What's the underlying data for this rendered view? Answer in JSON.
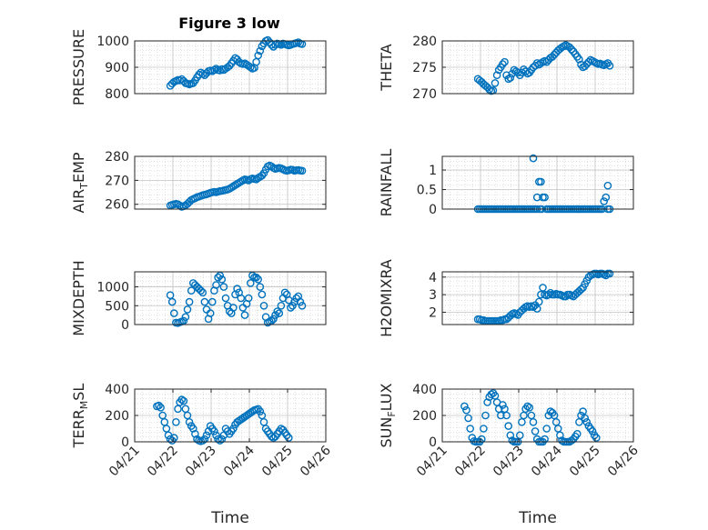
{
  "figure_title": "Figure 3 low",
  "marker_color": "#0072BD",
  "chart_data": [
    {
      "type": "scatter",
      "title": "Figure 3 low",
      "ylabel": "PRESSURE",
      "ylim": [
        800,
        1000
      ],
      "yticks": [
        800,
        900,
        1000
      ],
      "yticklabels": [
        "800",
        "900",
        "1000"
      ],
      "xlim": [
        0,
        5
      ],
      "xticklabels": [],
      "xlabel": "",
      "grid": true,
      "x": [
        0.93,
        0.98,
        1.03,
        1.08,
        1.13,
        1.18,
        1.23,
        1.28,
        1.33,
        1.38,
        1.43,
        1.48,
        1.53,
        1.58,
        1.63,
        1.68,
        1.73,
        1.78,
        1.83,
        1.88,
        1.93,
        1.98,
        2.03,
        2.08,
        2.13,
        2.18,
        2.23,
        2.28,
        2.33,
        2.38,
        2.43,
        2.48,
        2.53,
        2.58,
        2.63,
        2.68,
        2.73,
        2.78,
        2.83,
        2.88,
        2.93,
        2.98,
        3.03,
        3.08,
        3.13,
        3.18,
        3.23,
        3.28,
        3.33,
        3.38,
        3.43,
        3.48,
        3.53,
        3.58,
        3.63,
        3.68,
        3.73,
        3.78,
        3.83,
        3.88,
        3.93,
        3.98,
        4.03,
        4.08,
        4.13,
        4.18,
        4.23,
        4.28,
        4.33,
        4.38
      ],
      "y": [
        830,
        838,
        845,
        848,
        852,
        850,
        855,
        848,
        840,
        838,
        835,
        838,
        840,
        850,
        862,
        872,
        880,
        875,
        870,
        878,
        885,
        888,
        885,
        890,
        895,
        890,
        888,
        893,
        890,
        895,
        900,
        905,
        915,
        925,
        935,
        930,
        920,
        915,
        912,
        915,
        910,
        905,
        900,
        895,
        898,
        920,
        945,
        962,
        980,
        990,
        1000,
        1003,
        995,
        985,
        978,
        985,
        990,
        988,
        985,
        990,
        988,
        985,
        983,
        985,
        988,
        990,
        992,
        995,
        990,
        988
      ]
    },
    {
      "type": "scatter",
      "title": "",
      "ylabel": "THETA",
      "ylim": [
        270,
        280
      ],
      "yticks": [
        270,
        275,
        280
      ],
      "yticklabels": [
        "270",
        "275",
        "280"
      ],
      "xlim": [
        0,
        5
      ],
      "xticklabels": [],
      "xlabel": "",
      "grid": true,
      "x": [
        0.93,
        0.98,
        1.03,
        1.08,
        1.13,
        1.18,
        1.23,
        1.28,
        1.33,
        1.38,
        1.43,
        1.48,
        1.53,
        1.58,
        1.63,
        1.68,
        1.73,
        1.78,
        1.83,
        1.88,
        1.93,
        1.98,
        2.03,
        2.08,
        2.13,
        2.18,
        2.23,
        2.28,
        2.33,
        2.38,
        2.43,
        2.48,
        2.53,
        2.58,
        2.63,
        2.68,
        2.73,
        2.78,
        2.83,
        2.88,
        2.93,
        2.98,
        3.03,
        3.08,
        3.13,
        3.18,
        3.23,
        3.28,
        3.33,
        3.38,
        3.43,
        3.48,
        3.53,
        3.58,
        3.63,
        3.68,
        3.73,
        3.78,
        3.83,
        3.88,
        3.93,
        3.98,
        4.03,
        4.08,
        4.13,
        4.18,
        4.23,
        4.28,
        4.33,
        4.38
      ],
      "y": [
        272.8,
        272.5,
        272.2,
        271.8,
        271.5,
        271.2,
        270.8,
        270.5,
        270.6,
        272.0,
        273.5,
        274.5,
        275.0,
        275.6,
        276.0,
        273.5,
        272.8,
        273.0,
        273.8,
        274.5,
        274.2,
        274.0,
        273.5,
        274.0,
        274.6,
        274.2,
        273.8,
        274.0,
        274.5,
        275.0,
        275.3,
        275.8,
        275.5,
        275.8,
        276.0,
        276.2,
        276.0,
        276.4,
        276.8,
        277.0,
        277.4,
        277.8,
        278.2,
        278.5,
        278.8,
        279.0,
        279.2,
        279.0,
        278.8,
        278.4,
        278.0,
        277.5,
        277.0,
        276.5,
        275.5,
        275.0,
        275.2,
        275.6,
        276.0,
        276.4,
        276.2,
        276.0,
        275.8,
        275.6,
        275.7,
        275.5,
        275.4,
        275.6,
        275.8,
        275.3
      ]
    },
    {
      "type": "scatter",
      "title": "",
      "ylabel": "AIR_TEMP",
      "ylim": [
        258,
        280
      ],
      "yticks": [
        260,
        270,
        280
      ],
      "yticklabels": [
        "260",
        "270",
        "280"
      ],
      "xlim": [
        0,
        5
      ],
      "xticklabels": [],
      "xlabel": "",
      "grid": true,
      "x": [
        0.93,
        0.98,
        1.03,
        1.08,
        1.13,
        1.18,
        1.23,
        1.28,
        1.33,
        1.38,
        1.43,
        1.48,
        1.53,
        1.58,
        1.63,
        1.68,
        1.73,
        1.78,
        1.83,
        1.88,
        1.93,
        1.98,
        2.03,
        2.08,
        2.13,
        2.18,
        2.23,
        2.28,
        2.33,
        2.38,
        2.43,
        2.48,
        2.53,
        2.58,
        2.63,
        2.68,
        2.73,
        2.78,
        2.83,
        2.88,
        2.93,
        2.98,
        3.03,
        3.08,
        3.13,
        3.18,
        3.23,
        3.28,
        3.33,
        3.38,
        3.43,
        3.48,
        3.53,
        3.58,
        3.63,
        3.68,
        3.73,
        3.78,
        3.83,
        3.88,
        3.93,
        3.98,
        4.03,
        4.08,
        4.13,
        4.18,
        4.23,
        4.28,
        4.33,
        4.38
      ],
      "y": [
        259.5,
        259.8,
        260.0,
        260.2,
        260.0,
        259.5,
        259.0,
        259.2,
        259.6,
        260.2,
        261.0,
        261.8,
        262.2,
        262.5,
        263.0,
        263.2,
        263.5,
        263.8,
        264.0,
        264.2,
        264.5,
        264.8,
        265.0,
        265.2,
        265.0,
        265.3,
        265.5,
        265.6,
        265.8,
        266.0,
        266.2,
        266.5,
        267.0,
        267.5,
        268.0,
        268.5,
        269.0,
        269.5,
        270.0,
        270.4,
        270.2,
        270.0,
        270.5,
        270.8,
        270.6,
        270.4,
        271.0,
        271.5,
        272.0,
        273.0,
        274.5,
        275.8,
        276.2,
        275.8,
        275.2,
        274.8,
        275.0,
        275.2,
        275.0,
        274.6,
        274.2,
        274.0,
        274.2,
        274.5,
        274.4,
        274.0,
        274.2,
        274.3,
        274.1,
        274.0
      ]
    },
    {
      "type": "scatter",
      "title": "",
      "ylabel": "RAINFALL",
      "ylim": [
        0,
        1.35
      ],
      "yticks": [
        0,
        0.5,
        1
      ],
      "yticklabels": [
        "0",
        "0.5",
        "1"
      ],
      "xlim": [
        0,
        5
      ],
      "xticklabels": [],
      "xlabel": "",
      "grid": true,
      "x": [
        0.93,
        0.98,
        1.03,
        1.08,
        1.13,
        1.18,
        1.23,
        1.28,
        1.33,
        1.38,
        1.43,
        1.48,
        1.53,
        1.58,
        1.63,
        1.68,
        1.73,
        1.78,
        1.83,
        1.88,
        1.93,
        1.98,
        2.03,
        2.08,
        2.13,
        2.18,
        2.23,
        2.28,
        2.33,
        2.38,
        2.43,
        2.48,
        2.53,
        2.58,
        2.63,
        2.68,
        2.73,
        2.78,
        2.83,
        2.88,
        2.93,
        2.98,
        3.03,
        3.08,
        3.13,
        3.18,
        3.23,
        3.28,
        3.33,
        3.38,
        3.43,
        3.48,
        3.53,
        3.58,
        3.63,
        3.68,
        3.73,
        3.78,
        3.83,
        3.88,
        3.93,
        3.98,
        4.03,
        4.08,
        4.13,
        4.18,
        4.23,
        4.28,
        4.33,
        4.38,
        2.38,
        2.48,
        2.55,
        2.6,
        4.33
      ],
      "y": [
        0,
        0,
        0,
        0,
        0,
        0,
        0,
        0,
        0,
        0,
        0,
        0,
        0,
        0,
        0,
        0,
        0,
        0,
        0,
        0,
        0,
        0,
        0,
        0,
        0,
        0,
        0,
        0,
        0,
        0,
        0,
        0,
        0.7,
        0.7,
        0.3,
        0.3,
        0,
        0,
        0,
        0,
        0,
        0,
        0,
        0,
        0,
        0,
        0,
        0,
        0,
        0,
        0,
        0,
        0,
        0,
        0,
        0,
        0,
        0,
        0,
        0,
        0,
        0,
        0,
        0,
        0,
        0,
        0.2,
        0.3,
        0.6,
        0,
        1.3,
        0.3,
        0,
        0,
        0
      ]
    },
    {
      "type": "scatter",
      "title": "",
      "ylabel": "MIXDEPTH",
      "ylim": [
        0,
        1400
      ],
      "yticks": [
        0,
        500,
        1000
      ],
      "yticklabels": [
        "0",
        "500",
        "1000"
      ],
      "xlim": [
        0,
        5
      ],
      "xticklabels": [],
      "xlabel": "",
      "grid": true,
      "x": [
        0.93,
        0.98,
        1.03,
        1.08,
        1.13,
        1.18,
        1.23,
        1.28,
        1.33,
        1.38,
        1.43,
        1.48,
        1.53,
        1.58,
        1.63,
        1.68,
        1.73,
        1.78,
        1.83,
        1.88,
        1.93,
        1.98,
        2.03,
        2.08,
        2.13,
        2.18,
        2.23,
        2.28,
        2.33,
        2.38,
        2.43,
        2.48,
        2.53,
        2.58,
        2.63,
        2.68,
        2.73,
        2.78,
        2.83,
        2.88,
        2.93,
        2.98,
        3.03,
        3.08,
        3.13,
        3.18,
        3.23,
        3.28,
        3.33,
        3.38,
        3.43,
        3.48,
        3.53,
        3.58,
        3.63,
        3.68,
        3.73,
        3.78,
        3.83,
        3.88,
        3.93,
        3.98,
        4.03,
        4.08,
        4.13,
        4.18,
        4.23,
        4.28,
        4.33,
        4.38
      ],
      "y": [
        780,
        600,
        300,
        50,
        40,
        60,
        80,
        100,
        200,
        400,
        600,
        900,
        1100,
        1050,
        1000,
        950,
        900,
        850,
        600,
        400,
        150,
        300,
        600,
        900,
        1050,
        1250,
        1300,
        1200,
        1000,
        700,
        500,
        350,
        300,
        450,
        800,
        950,
        850,
        700,
        450,
        250,
        550,
        700,
        1100,
        1300,
        1250,
        1250,
        1200,
        1000,
        800,
        500,
        200,
        50,
        80,
        100,
        150,
        250,
        350,
        300,
        500,
        700,
        850,
        800,
        650,
        450,
        500,
        600,
        700,
        750,
        600,
        500
      ]
    },
    {
      "type": "scatter",
      "title": "",
      "ylabel": "H2OMIXRA",
      "ylim": [
        1.3,
        4.3
      ],
      "yticks": [
        2,
        3,
        4
      ],
      "yticklabels": [
        "2",
        "3",
        "4"
      ],
      "xlim": [
        0,
        5
      ],
      "xticklabels": [],
      "xlabel": "",
      "grid": true,
      "x": [
        0.93,
        0.98,
        1.03,
        1.08,
        1.13,
        1.18,
        1.23,
        1.28,
        1.33,
        1.38,
        1.43,
        1.48,
        1.53,
        1.58,
        1.63,
        1.68,
        1.73,
        1.78,
        1.83,
        1.88,
        1.93,
        1.98,
        2.03,
        2.08,
        2.13,
        2.18,
        2.23,
        2.28,
        2.33,
        2.38,
        2.43,
        2.48,
        2.53,
        2.58,
        2.63,
        2.68,
        2.73,
        2.78,
        2.83,
        2.88,
        2.93,
        2.98,
        3.03,
        3.08,
        3.13,
        3.18,
        3.23,
        3.28,
        3.33,
        3.38,
        3.43,
        3.48,
        3.53,
        3.58,
        3.63,
        3.68,
        3.73,
        3.78,
        3.83,
        3.88,
        3.93,
        3.98,
        4.03,
        4.08,
        4.13,
        4.18,
        4.23,
        4.28,
        4.33,
        4.38
      ],
      "y": [
        1.6,
        1.6,
        1.55,
        1.55,
        1.5,
        1.5,
        1.5,
        1.5,
        1.5,
        1.5,
        1.5,
        1.5,
        1.55,
        1.55,
        1.6,
        1.6,
        1.7,
        1.8,
        1.9,
        1.95,
        1.9,
        1.85,
        2.0,
        2.1,
        2.2,
        2.3,
        2.35,
        2.3,
        2.35,
        2.3,
        2.4,
        2.2,
        2.6,
        3.0,
        3.4,
        3.0,
        2.95,
        3.0,
        3.1,
        3.0,
        3.0,
        3.05,
        3.0,
        3.0,
        2.95,
        2.9,
        2.9,
        3.0,
        3.0,
        2.95,
        2.9,
        3.0,
        3.1,
        3.2,
        3.3,
        3.4,
        3.6,
        3.8,
        4.0,
        4.1,
        4.15,
        4.2,
        4.2,
        4.15,
        4.2,
        4.2,
        4.15,
        4.1,
        4.2,
        4.2
      ]
    },
    {
      "type": "scatter",
      "title": "",
      "ylabel": "TERR_MSL",
      "ylim": [
        0,
        400
      ],
      "yticks": [
        0,
        200,
        400
      ],
      "yticklabels": [
        "0",
        "200",
        "400"
      ],
      "xlim": [
        0,
        5
      ],
      "xticks": [
        0,
        1,
        2,
        3,
        4,
        5
      ],
      "xticklabels": [
        "04/21",
        "04/22",
        "04/23",
        "04/24",
        "04/25",
        "04/26"
      ],
      "xlabel": "Time",
      "grid": true,
      "x": [
        0.58,
        0.63,
        0.68,
        0.73,
        0.78,
        0.83,
        0.88,
        0.93,
        0.98,
        1.03,
        1.08,
        1.13,
        1.18,
        1.23,
        1.28,
        1.33,
        1.38,
        1.43,
        1.48,
        1.53,
        1.58,
        1.63,
        1.68,
        1.73,
        1.78,
        1.83,
        1.88,
        1.93,
        1.98,
        2.03,
        2.08,
        2.13,
        2.18,
        2.23,
        2.28,
        2.33,
        2.38,
        2.43,
        2.48,
        2.53,
        2.58,
        2.63,
        2.68,
        2.73,
        2.78,
        2.83,
        2.88,
        2.93,
        2.98,
        3.03,
        3.08,
        3.13,
        3.18,
        3.23,
        3.28,
        3.33,
        3.38,
        3.43,
        3.48,
        3.53,
        3.58,
        3.63,
        3.68,
        3.73,
        3.78,
        3.83,
        3.88,
        3.93,
        3.98,
        4.03
      ],
      "y": [
        270,
        275,
        260,
        200,
        150,
        100,
        50,
        20,
        10,
        30,
        150,
        250,
        300,
        320,
        310,
        250,
        200,
        150,
        120,
        100,
        60,
        20,
        10,
        5,
        10,
        20,
        50,
        80,
        120,
        100,
        80,
        50,
        20,
        10,
        20,
        50,
        100,
        80,
        60,
        80,
        100,
        130,
        150,
        160,
        170,
        180,
        190,
        200,
        210,
        220,
        230,
        240,
        245,
        250,
        230,
        200,
        150,
        100,
        80,
        60,
        40,
        30,
        40,
        60,
        80,
        100,
        90,
        70,
        50,
        30
      ]
    },
    {
      "type": "scatter",
      "title": "",
      "ylabel": "SUN_FLUX",
      "ylim": [
        0,
        400
      ],
      "yticks": [
        0,
        200,
        400
      ],
      "yticklabels": [
        "0",
        "200",
        "400"
      ],
      "xlim": [
        0,
        5
      ],
      "xticks": [
        0,
        1,
        2,
        3,
        4,
        5
      ],
      "xticklabels": [
        "04/21",
        "04/22",
        "04/23",
        "04/24",
        "04/25",
        "04/26"
      ],
      "xlabel": "Time",
      "grid": true,
      "x": [
        0.58,
        0.63,
        0.68,
        0.73,
        0.78,
        0.83,
        0.88,
        0.93,
        0.98,
        1.03,
        1.08,
        1.13,
        1.18,
        1.23,
        1.28,
        1.33,
        1.38,
        1.43,
        1.48,
        1.53,
        1.58,
        1.63,
        1.68,
        1.73,
        1.78,
        1.83,
        1.88,
        1.93,
        1.98,
        2.03,
        2.08,
        2.13,
        2.18,
        2.23,
        2.28,
        2.33,
        2.38,
        2.43,
        2.48,
        2.53,
        2.58,
        2.63,
        2.68,
        2.73,
        2.78,
        2.83,
        2.88,
        2.93,
        2.98,
        3.03,
        3.08,
        3.13,
        3.18,
        3.23,
        3.28,
        3.33,
        3.38,
        3.43,
        3.48,
        3.53,
        3.58,
        3.63,
        3.68,
        3.73,
        3.78,
        3.83,
        3.88,
        3.93,
        3.98,
        4.03
      ],
      "y": [
        270,
        240,
        180,
        100,
        30,
        5,
        0,
        0,
        0,
        20,
        100,
        200,
        300,
        340,
        360,
        370,
        350,
        300,
        250,
        200,
        280,
        250,
        200,
        120,
        50,
        10,
        0,
        0,
        0,
        50,
        150,
        200,
        250,
        270,
        260,
        200,
        150,
        80,
        20,
        0,
        0,
        0,
        20,
        100,
        200,
        230,
        220,
        200,
        150,
        100,
        50,
        10,
        0,
        0,
        0,
        0,
        10,
        20,
        40,
        60,
        150,
        200,
        230,
        180,
        150,
        120,
        100,
        80,
        50,
        30
      ]
    }
  ]
}
